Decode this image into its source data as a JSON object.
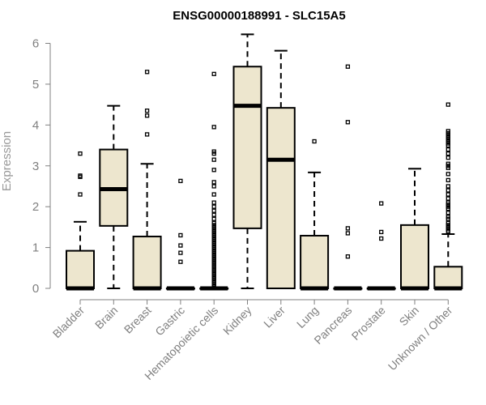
{
  "chart_data": {
    "type": "boxplot",
    "title": "ENSG00000188991 - SLC15A5",
    "ylabel": "Expression",
    "ylim": [
      0,
      6
    ],
    "yticks": [
      0,
      1,
      2,
      3,
      4,
      5,
      6
    ],
    "grid": false,
    "box_fill": "#EDE6CE",
    "categories": [
      "Bladder",
      "Brain",
      "Breast",
      "Gastric",
      "Hematopoietic cells",
      "Kidney",
      "Liver",
      "Lung",
      "Pancreas",
      "Prostate",
      "Skin",
      "Unknown / Other"
    ],
    "boxes": [
      {
        "category": "Bladder",
        "q1": 0,
        "median": 0,
        "q3": 0.92,
        "whisker_low": 0,
        "whisker_high": 1.63,
        "outliers": [
          2.3,
          2.73,
          2.76,
          3.3
        ]
      },
      {
        "category": "Brain",
        "q1": 1.53,
        "median": 2.43,
        "q3": 3.4,
        "whisker_low": 0,
        "whisker_high": 4.47,
        "outliers": []
      },
      {
        "category": "Breast",
        "q1": 0,
        "median": 0,
        "q3": 1.27,
        "whisker_low": 0,
        "whisker_high": 3.05,
        "outliers": [
          3.77,
          4.23,
          4.35,
          5.3
        ]
      },
      {
        "category": "Gastric",
        "q1": 0,
        "median": 0,
        "q3": 0,
        "whisker_low": 0,
        "whisker_high": 0,
        "outliers": [
          0.65,
          0.87,
          1.05,
          1.3,
          2.63
        ]
      },
      {
        "category": "Hematopoietic cells",
        "q1": 0,
        "median": 0,
        "q3": 0,
        "whisker_low": 0,
        "whisker_high": 0,
        "outliers": [
          0.05,
          0.1,
          0.15,
          0.2,
          0.25,
          0.3,
          0.35,
          0.4,
          0.45,
          0.5,
          0.55,
          0.6,
          0.65,
          0.7,
          0.75,
          0.8,
          0.85,
          0.9,
          0.95,
          1.0,
          1.05,
          1.1,
          1.15,
          1.2,
          1.25,
          1.3,
          1.35,
          1.4,
          1.45,
          1.5,
          1.55,
          1.6,
          1.7,
          1.8,
          1.9,
          2.0,
          2.1,
          2.3,
          2.5,
          2.6,
          2.9,
          3.15,
          3.3,
          3.35,
          3.95,
          5.25
        ]
      },
      {
        "category": "Kidney",
        "q1": 1.47,
        "median": 4.47,
        "q3": 5.43,
        "whisker_low": 0,
        "whisker_high": 6.22,
        "outliers": []
      },
      {
        "category": "Liver",
        "q1": 0,
        "median": 3.15,
        "q3": 4.42,
        "whisker_low": 0,
        "whisker_high": 5.82,
        "outliers": []
      },
      {
        "category": "Lung",
        "q1": 0,
        "median": 0,
        "q3": 1.29,
        "whisker_low": 0,
        "whisker_high": 2.84,
        "outliers": [
          3.6
        ]
      },
      {
        "category": "Pancreas",
        "q1": 0,
        "median": 0,
        "q3": 0,
        "whisker_low": 0,
        "whisker_high": 0,
        "outliers": [
          0.78,
          1.35,
          1.47,
          4.07,
          5.43
        ]
      },
      {
        "category": "Prostate",
        "q1": 0,
        "median": 0,
        "q3": 0,
        "whisker_low": 0,
        "whisker_high": 0,
        "outliers": [
          1.22,
          1.38,
          2.08
        ]
      },
      {
        "category": "Skin",
        "q1": 0,
        "median": 0,
        "q3": 1.55,
        "whisker_low": 0,
        "whisker_high": 2.93,
        "outliers": []
      },
      {
        "category": "Unknown / Other",
        "q1": 0,
        "median": 0,
        "q3": 0.53,
        "whisker_low": 0,
        "whisker_high": 1.33,
        "outliers": [
          1.4,
          1.45,
          1.5,
          1.55,
          1.6,
          1.7,
          1.75,
          1.85,
          1.95,
          2.0,
          2.05,
          2.1,
          2.2,
          2.3,
          2.4,
          2.5,
          2.65,
          2.8,
          2.95,
          3.0,
          3.05,
          3.2,
          3.3,
          3.4,
          3.5,
          3.55,
          3.6,
          3.65,
          3.7,
          3.75,
          3.8,
          3.85,
          4.5
        ]
      }
    ]
  }
}
